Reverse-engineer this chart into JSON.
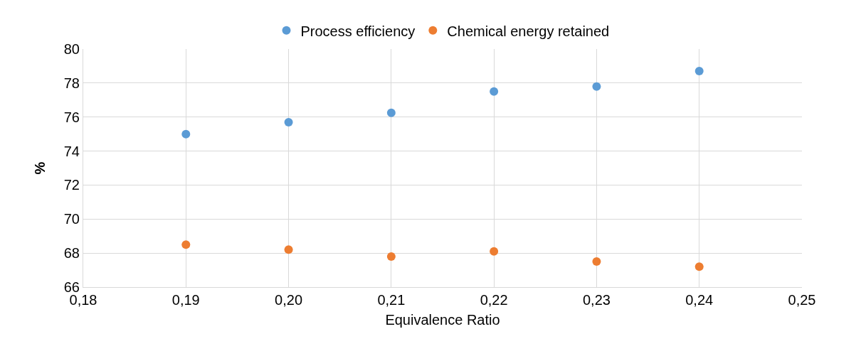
{
  "chart_data": {
    "type": "scatter",
    "xlabel": "Equivalence Ratio",
    "ylabel": "%",
    "x": [
      0.19,
      0.2,
      0.21,
      0.22,
      0.23,
      0.24
    ],
    "series": [
      {
        "name": "Process efficiency",
        "color": "#5b9bd5",
        "values": [
          75.0,
          75.7,
          76.25,
          77.5,
          77.8,
          78.7
        ]
      },
      {
        "name": "Chemical energy retained",
        "color": "#ed7d31",
        "values": [
          68.5,
          68.2,
          67.8,
          68.1,
          67.5,
          67.2
        ]
      }
    ],
    "xlim": [
      0.18,
      0.25
    ],
    "xticks": [
      {
        "value": 0.18,
        "label": "0,18"
      },
      {
        "value": 0.19,
        "label": "0,19"
      },
      {
        "value": 0.2,
        "label": "0,20"
      },
      {
        "value": 0.21,
        "label": "0,21"
      },
      {
        "value": 0.22,
        "label": "0,22"
      },
      {
        "value": 0.23,
        "label": "0,23"
      },
      {
        "value": 0.24,
        "label": "0,24"
      },
      {
        "value": 0.25,
        "label": "0,25"
      }
    ],
    "ylim": [
      66,
      80
    ],
    "yticks": [
      66,
      68,
      70,
      72,
      74,
      76,
      78,
      80
    ],
    "grid": true,
    "legend": "top",
    "marker": "circle"
  }
}
